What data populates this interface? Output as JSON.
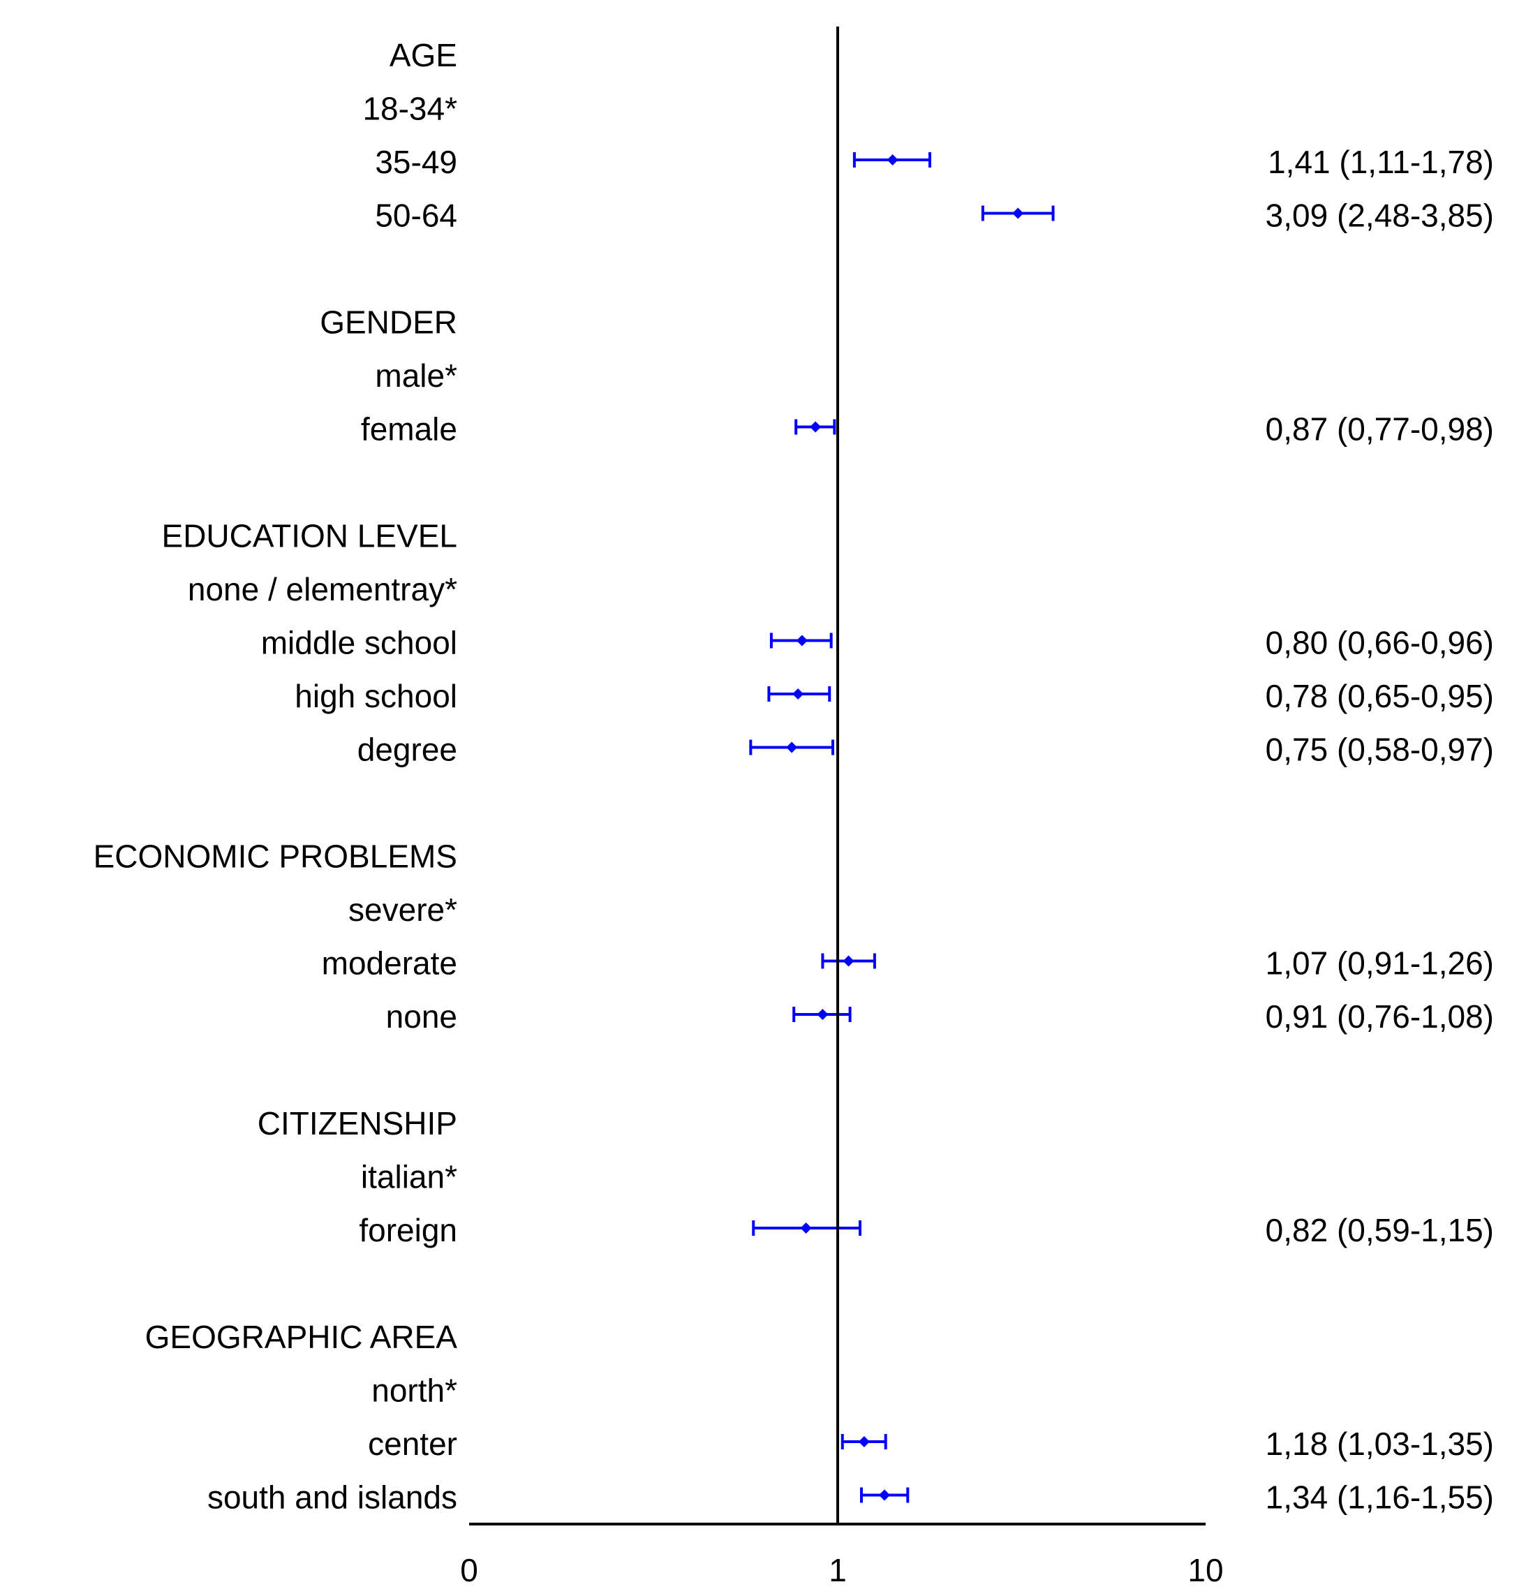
{
  "chart_data": {
    "type": "forest",
    "xscale": "log",
    "reference_x": 1,
    "x_ticks": [
      "0",
      "1",
      "10"
    ],
    "colors": {
      "marker": "#0000ff",
      "axis": "#000000",
      "text": "#000000"
    },
    "rows": [
      {
        "label": "AGE",
        "kind": "header"
      },
      {
        "label": "18-34*",
        "kind": "reference"
      },
      {
        "label": "35-49",
        "kind": "estimate",
        "or": 1.41,
        "lo": 1.11,
        "hi": 1.78,
        "text": "1,41 (1,11-1,78)"
      },
      {
        "label": "50-64",
        "kind": "estimate",
        "or": 3.09,
        "lo": 2.48,
        "hi": 3.85,
        "text": "3,09 (2,48-3,85)"
      },
      {
        "label": "GENDER",
        "kind": "header"
      },
      {
        "label": "male*",
        "kind": "reference"
      },
      {
        "label": "female",
        "kind": "estimate",
        "or": 0.87,
        "lo": 0.77,
        "hi": 0.98,
        "text": "0,87 (0,77-0,98)"
      },
      {
        "label": "EDUCATION LEVEL",
        "kind": "header"
      },
      {
        "label": "none / elementray*",
        "kind": "reference"
      },
      {
        "label": "middle school",
        "kind": "estimate",
        "or": 0.8,
        "lo": 0.66,
        "hi": 0.96,
        "text": "0,80 (0,66-0,96)"
      },
      {
        "label": "high school",
        "kind": "estimate",
        "or": 0.78,
        "lo": 0.65,
        "hi": 0.95,
        "text": "0,78 (0,65-0,95)"
      },
      {
        "label": "degree",
        "kind": "estimate",
        "or": 0.75,
        "lo": 0.58,
        "hi": 0.97,
        "text": "0,75 (0,58-0,97)"
      },
      {
        "label": "ECONOMIC PROBLEMS",
        "kind": "header"
      },
      {
        "label": "severe*",
        "kind": "reference"
      },
      {
        "label": "moderate",
        "kind": "estimate",
        "or": 1.07,
        "lo": 0.91,
        "hi": 1.26,
        "text": "1,07 (0,91-1,26)"
      },
      {
        "label": "none",
        "kind": "estimate",
        "or": 0.91,
        "lo": 0.76,
        "hi": 1.08,
        "text": "0,91 (0,76-1,08)"
      },
      {
        "label": "CITIZENSHIP",
        "kind": "header"
      },
      {
        "label": "italian*",
        "kind": "reference"
      },
      {
        "label": "foreign",
        "kind": "estimate",
        "or": 0.82,
        "lo": 0.59,
        "hi": 1.15,
        "text": "0,82 (0,59-1,15)"
      },
      {
        "label": "GEOGRAPHIC AREA",
        "kind": "header"
      },
      {
        "label": "north*",
        "kind": "reference"
      },
      {
        "label": "center",
        "kind": "estimate",
        "or": 1.18,
        "lo": 1.03,
        "hi": 1.35,
        "text": "1,18 (1,03-1,35)"
      },
      {
        "label": "south and islands",
        "kind": "estimate",
        "or": 1.34,
        "lo": 1.16,
        "hi": 1.55,
        "text": "1,34 (1,16-1,55)"
      }
    ]
  }
}
